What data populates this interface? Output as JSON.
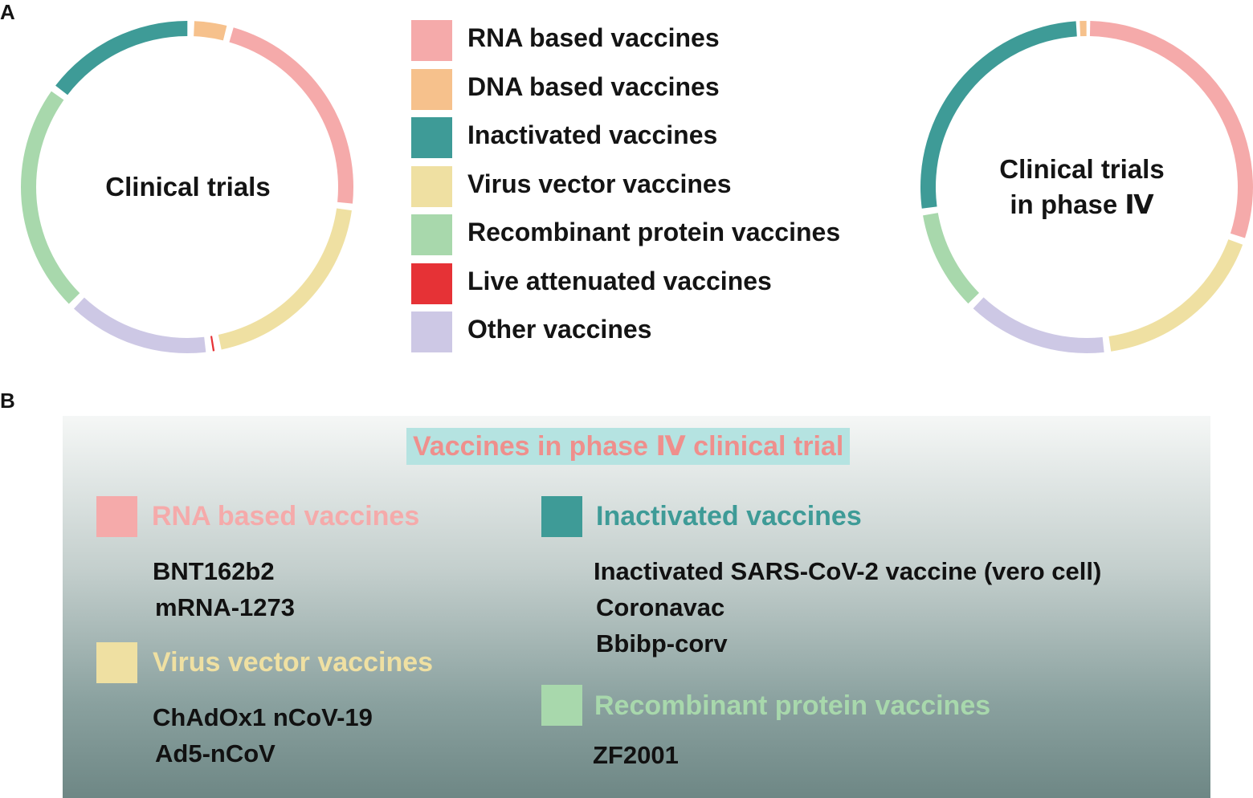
{
  "panel_labels": {
    "a": "A",
    "b": "B"
  },
  "chart_data": [
    {
      "type": "pie",
      "center_label": "Clinical trials",
      "categories": [
        "RNA based vaccines",
        "Virus vector vaccines",
        "Live attenuated vaccines",
        "Other vaccines",
        "Recombinant protein vaccines",
        "Inactivated vaccines",
        "DNA based vaccines"
      ],
      "values": [
        21.5,
        19.0,
        0.8,
        13.6,
        21.6,
        14.4,
        3.6
      ],
      "colors": [
        "#f5aaaa",
        "#efe0a2",
        "#e63236",
        "#cdc8e5",
        "#a8d8ac",
        "#3e9b97",
        "#f6c18c"
      ]
    },
    {
      "type": "pie",
      "center_label": "Clinical trials\nin phase Ⅳ",
      "categories": [
        "RNA based vaccines",
        "Virus vector vaccines",
        "Other vaccines",
        "Recombinant protein vaccines",
        "Inactivated vaccines",
        "DNA based vaccines"
      ],
      "values": [
        30.3,
        17.7,
        14.3,
        10.3,
        26.7,
        0.7
      ],
      "colors": [
        "#f5aaaa",
        "#efe0a2",
        "#cdc8e5",
        "#a8d8ac",
        "#3e9b97",
        "#f6c18c"
      ]
    }
  ],
  "legend": [
    {
      "label": "RNA based vaccines",
      "color": "#f5aaaa"
    },
    {
      "label": "DNA based vaccines",
      "color": "#f6c18c"
    },
    {
      "label": "Inactivated vaccines",
      "color": "#3e9b97"
    },
    {
      "label": "Virus vector vaccines",
      "color": "#efe0a2"
    },
    {
      "label": "Recombinant protein vaccines",
      "color": "#a8d8ac"
    },
    {
      "label": "Live attenuated vaccines",
      "color": "#e63236"
    },
    {
      "label": "Other vaccines",
      "color": "#cdc8e5"
    }
  ],
  "phase4": {
    "title": "Vaccines in phase Ⅳ clinical trial",
    "title_color": "#ef8f8c",
    "categories": [
      {
        "label": "RNA based vaccines",
        "color": "#f5aaaa",
        "vaccines": [
          "BNT162b2",
          "mRNA-1273"
        ]
      },
      {
        "label": "Virus vector vaccines",
        "color": "#efe0a2",
        "vaccines": [
          "ChAdOx1 nCoV-19",
          "Ad5-nCoV"
        ]
      },
      {
        "label": "Inactivated vaccines",
        "color": "#3e9b97",
        "vaccines": [
          "Inactivated SARS-CoV-2 vaccine (vero cell)",
          "Coronavac",
          "Bbibp-corv"
        ]
      },
      {
        "label": "Recombinant protein vaccines",
        "color": "#a8d8ac",
        "vaccines": [
          "ZF2001"
        ]
      }
    ]
  }
}
